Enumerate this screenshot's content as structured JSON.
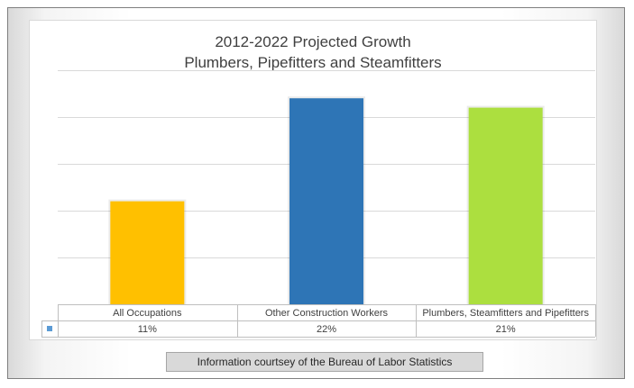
{
  "chart_data": {
    "type": "bar",
    "title_line1": "2012-2022 Projected Growth",
    "title_line2": "Plumbers, Pipefitters and Steamfitters",
    "categories": [
      "All Occupations",
      "Other Construction Workers",
      "Plumbers, Steamfitters and Pipefitters"
    ],
    "values": [
      11,
      22,
      21
    ],
    "value_labels": [
      "11%",
      "22%",
      "21%"
    ],
    "bar_colors": [
      "#ffc000",
      "#2e75b6",
      "#acdf3f"
    ],
    "legend_key_color": "#5b9bd5",
    "ylim": [
      0,
      25
    ],
    "grid": true,
    "data_table": true
  },
  "footer": {
    "credit": "Information courtsey of the Bureau of Labor Statistics"
  }
}
